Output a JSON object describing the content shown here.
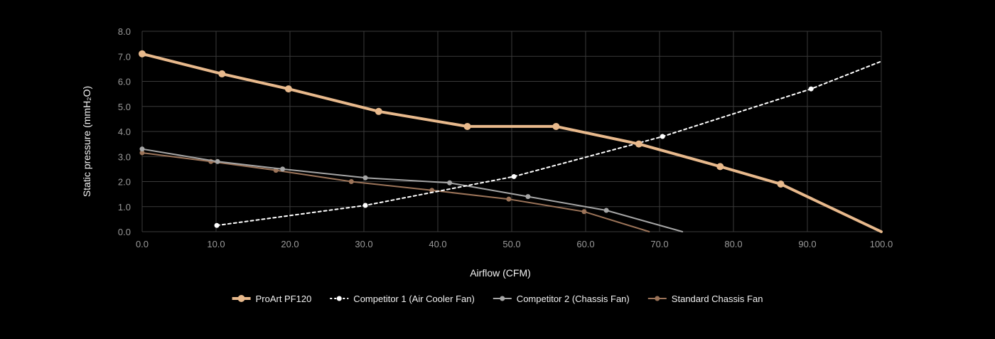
{
  "chart_data": {
    "type": "line",
    "title": "",
    "xlabel": "Airflow (CFM)",
    "ylabel": "Static pressure (mmH₂O)",
    "xlim": [
      0,
      100
    ],
    "ylim": [
      0,
      8
    ],
    "x_ticks": [
      "0.0",
      "10.0",
      "20.0",
      "30.0",
      "40.0",
      "50.0",
      "60.0",
      "70.0",
      "80.0",
      "90.0",
      "100.0"
    ],
    "y_ticks": [
      "0.0",
      "1.0",
      "2.0",
      "3.0",
      "4.0",
      "5.0",
      "6.0",
      "7.0",
      "8.0"
    ],
    "grid": true,
    "legend_position": "bottom-center",
    "series": [
      {
        "name": "ProArt PF120",
        "color": "#e8b98c",
        "style": "solid-thick",
        "points": [
          [
            0,
            7.1
          ],
          [
            10.8,
            6.3
          ],
          [
            19.8,
            5.7
          ],
          [
            32,
            4.8
          ],
          [
            44,
            4.2
          ],
          [
            56,
            4.2
          ],
          [
            67.2,
            3.5
          ],
          [
            78.2,
            2.6
          ],
          [
            86.4,
            1.9
          ],
          [
            100,
            0
          ]
        ],
        "markers": [
          0,
          1,
          2,
          3,
          4,
          5,
          6,
          7,
          8
        ]
      },
      {
        "name": "Competitor 1 (Air Cooler Fan)",
        "color": "#ffffff",
        "style": "dashed",
        "points": [
          [
            10.1,
            0.25
          ],
          [
            30.2,
            1.05
          ],
          [
            50.3,
            2.2
          ],
          [
            70.4,
            3.8
          ],
          [
            90.5,
            5.7
          ],
          [
            100,
            6.8
          ]
        ],
        "markers": [
          0,
          1,
          2,
          3,
          4
        ]
      },
      {
        "name": "Competitor 2 (Chassis Fan)",
        "color": "#a6a6a6",
        "style": "solid",
        "points": [
          [
            0,
            3.3
          ],
          [
            10.2,
            2.8
          ],
          [
            19,
            2.5
          ],
          [
            30.2,
            2.15
          ],
          [
            41.6,
            1.95
          ],
          [
            52.2,
            1.4
          ],
          [
            62.8,
            0.85
          ],
          [
            73.1,
            0
          ]
        ],
        "markers": [
          0,
          1,
          2,
          3,
          4,
          5,
          6
        ]
      },
      {
        "name": "Standard Chassis Fan",
        "color": "#9c7459",
        "style": "solid",
        "points": [
          [
            0,
            3.15
          ],
          [
            9.3,
            2.8
          ],
          [
            18.1,
            2.45
          ],
          [
            28.3,
            2
          ],
          [
            39.2,
            1.65
          ],
          [
            49.6,
            1.3
          ],
          [
            59.8,
            0.8
          ],
          [
            68.6,
            0
          ]
        ],
        "markers": [
          0,
          1,
          2,
          3,
          4,
          5,
          6
        ]
      }
    ]
  }
}
